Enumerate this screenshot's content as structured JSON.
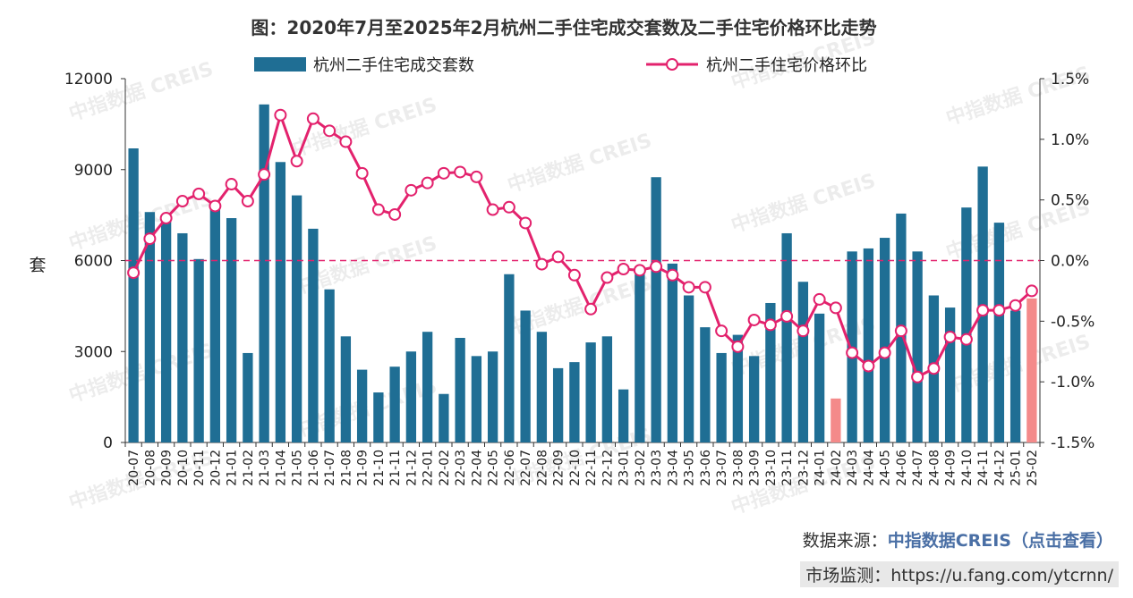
{
  "chart_data": {
    "type": "bar+line",
    "title": "图：2020年7月至2025年2月杭州二手住宅成交套数及二手住宅价格环比走势",
    "ylabel_left": "套",
    "ylim_left": [
      0,
      12000
    ],
    "yticks_left": [
      "0",
      "3000",
      "6000",
      "9000",
      "12000"
    ],
    "ylim_right": [
      -1.5,
      1.5
    ],
    "yticks_right": [
      "-1.5%",
      "-1.0%",
      "-0.5%",
      "0.0%",
      "0.5%",
      "1.0%",
      "1.5%"
    ],
    "grid": false,
    "legend_position": "top",
    "colors": {
      "bar": "#1f6e94",
      "bar_highlight": "#f48a8a",
      "line": "#e3226d",
      "zero_line": "#e3226d"
    },
    "categories": [
      "20-07",
      "20-08",
      "20-09",
      "20-10",
      "20-11",
      "20-12",
      "21-01",
      "21-02",
      "21-03",
      "21-04",
      "21-05",
      "21-06",
      "21-07",
      "21-08",
      "21-09",
      "21-10",
      "21-11",
      "21-12",
      "22-01",
      "22-02",
      "22-03",
      "22-04",
      "22-05",
      "22-06",
      "22-07",
      "22-08",
      "22-09",
      "22-10",
      "22-11",
      "22-12",
      "23-01",
      "23-02",
      "23-03",
      "23-04",
      "23-05",
      "23-06",
      "23-07",
      "23-08",
      "23-09",
      "23-10",
      "23-11",
      "23-12",
      "24-01",
      "24-02",
      "24-03",
      "24-04",
      "24-05",
      "24-06",
      "24-07",
      "24-08",
      "24-09",
      "24-10",
      "24-11",
      "24-12",
      "25-01",
      "25-02"
    ],
    "series": [
      {
        "name": "杭州二手住宅成交套数",
        "type": "bar",
        "axis": "left",
        "values": [
          9700,
          7600,
          7300,
          6900,
          6050,
          7850,
          7400,
          2950,
          11150,
          9250,
          8150,
          7050,
          5050,
          3500,
          2400,
          1650,
          2500,
          3000,
          3650,
          1600,
          3450,
          2850,
          3000,
          5550,
          4350,
          3650,
          2450,
          2650,
          3300,
          3500,
          1750,
          5550,
          8750,
          5900,
          4850,
          3800,
          2950,
          3550,
          2850,
          4600,
          6900,
          5300,
          4250,
          1450,
          6300,
          6400,
          6750,
          7550,
          6300,
          4850,
          4450,
          7750,
          9100,
          7250,
          4350,
          4750
        ],
        "highlight_indices": [
          43,
          55
        ]
      },
      {
        "name": "杭州二手住宅价格环比",
        "type": "line",
        "axis": "right",
        "unit": "%",
        "values": [
          -0.1,
          0.18,
          0.35,
          0.49,
          0.55,
          0.45,
          0.63,
          0.49,
          0.71,
          1.2,
          0.82,
          1.17,
          1.07,
          0.98,
          0.72,
          0.42,
          0.38,
          0.58,
          0.64,
          0.72,
          0.73,
          0.69,
          0.42,
          0.44,
          0.31,
          -0.03,
          0.03,
          -0.12,
          -0.4,
          -0.14,
          -0.07,
          -0.08,
          -0.05,
          -0.12,
          -0.22,
          -0.22,
          -0.58,
          -0.71,
          -0.49,
          -0.53,
          -0.46,
          -0.58,
          -0.32,
          -0.39,
          -0.76,
          -0.87,
          -0.76,
          -0.58,
          -0.96,
          -0.89,
          -0.63,
          -0.65,
          -0.41,
          -0.41,
          -0.37,
          -0.25
        ]
      }
    ]
  },
  "watermark": "中指数据 CREIS",
  "source": {
    "label": "数据来源：",
    "link": "中指数据CREIS（点击查看）"
  },
  "monitor": "市场监测：https://u.fang.com/ytcrnn/"
}
